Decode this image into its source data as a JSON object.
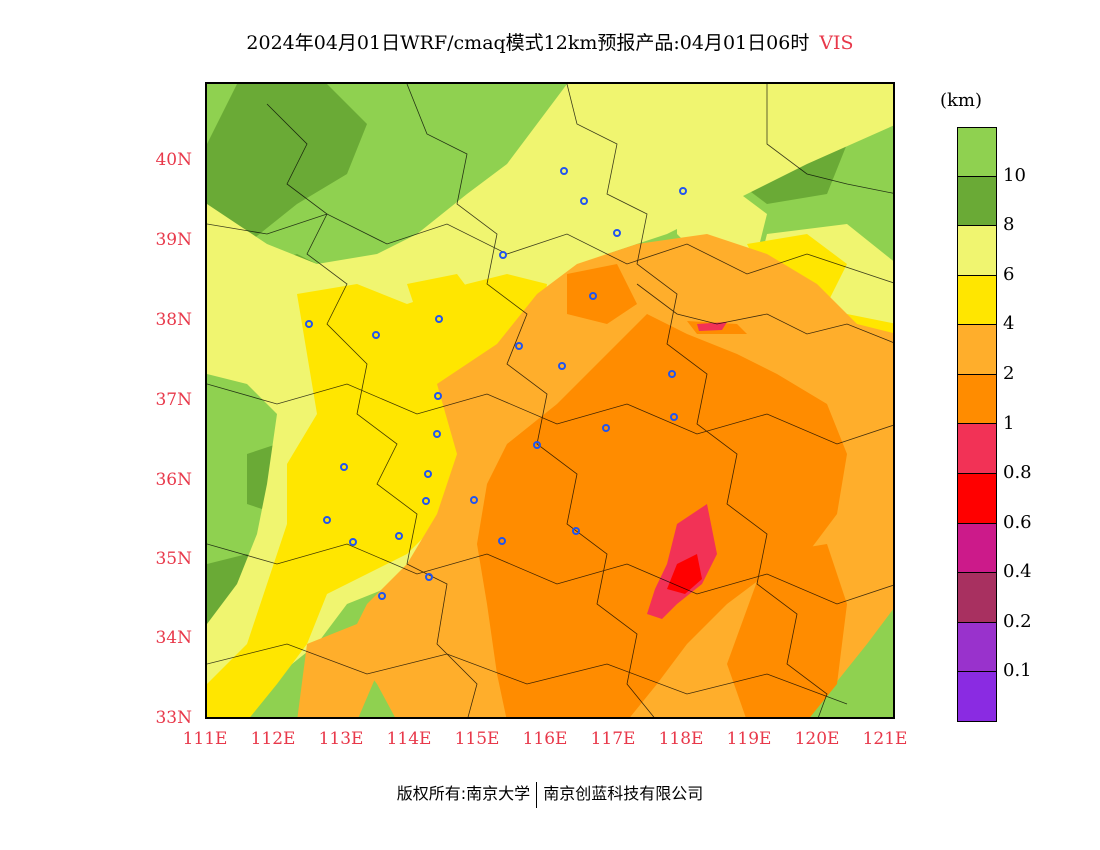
{
  "title": {
    "main": "2024年04月01日WRF/cmaq模式12km预报产品:04月01日06时",
    "variable": "VIS"
  },
  "axes": {
    "latitudes": [
      "40N",
      "39N",
      "38N",
      "37N",
      "36N",
      "35N",
      "34N",
      "33N"
    ],
    "longitudes": [
      "111E",
      "112E",
      "113E",
      "114E",
      "115E",
      "116E",
      "117E",
      "118E",
      "119E",
      "120E",
      "121E"
    ]
  },
  "colorbar": {
    "unit": "(km)",
    "levels": [
      "10",
      "8",
      "6",
      "4",
      "2",
      "1",
      "0.8",
      "0.6",
      "0.4",
      "0.2",
      "0.1"
    ],
    "colors": [
      "#8fd150",
      "#6aaa36",
      "#f0f570",
      "#ffe600",
      "#ffae2b",
      "#ff8c00",
      "#f23256",
      "#ff0000",
      "#cc1a8a",
      "#a83060",
      "#9932cc",
      "#8a2be2"
    ]
  },
  "footer": {
    "left": "版权所有:南京大学",
    "right": "南京创蓝科技有限公司"
  }
}
